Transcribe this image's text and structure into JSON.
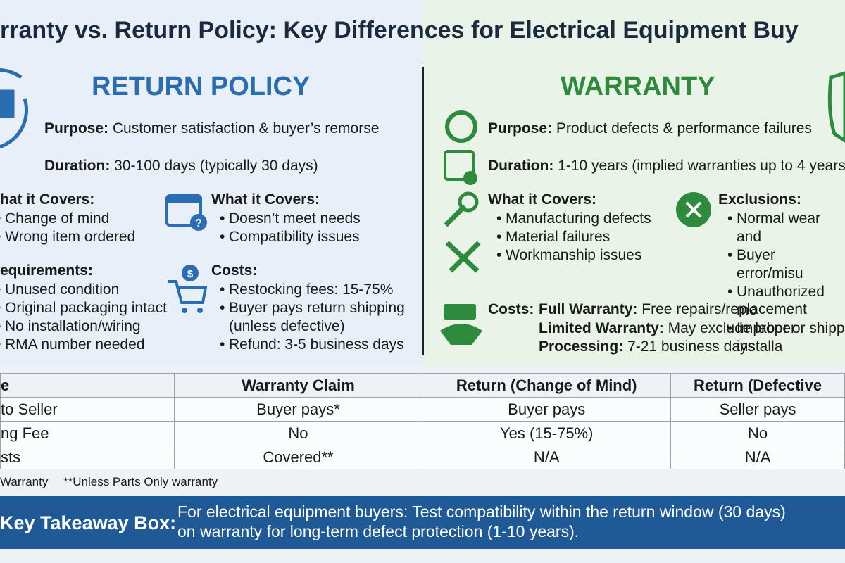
{
  "title": "rranty vs. Return Policy: Key Differences for Electrical Equipment Buy",
  "return_policy": {
    "heading": "RETURN POLICY",
    "purpose_label": "Purpose:",
    "purpose": "Customer satisfaction & buyer’s remorse",
    "duration_label": "Duration:",
    "duration": "30-100 days (typically 30 days)",
    "covers_a": {
      "label": "hat it Covers:",
      "items": [
        "Change of mind",
        "Wrong item ordered"
      ]
    },
    "requirements": {
      "label": "equirements:",
      "items": [
        "Unused condition",
        "Original packaging intact",
        "No installation/wiring",
        "RMA number needed"
      ]
    },
    "covers_b": {
      "label": "What it Covers:",
      "items": [
        "Doesn’t meet needs",
        "Compatibility issues"
      ]
    },
    "costs": {
      "label": "Costs:",
      "items": [
        "Restocking fees: 15-75%",
        "Buyer pays return shipping\n(unless defective)",
        "Refund: 3-5 business days"
      ]
    }
  },
  "warranty": {
    "heading": "WARRANTY",
    "purpose_label": "Purpose:",
    "purpose": "Product defects & performance failures",
    "duration_label": "Duration:",
    "duration": "1-10 years (implied warranties up to 4 years",
    "covers": {
      "label": "What it Covers:",
      "items": [
        "Manufacturing defects",
        "Material failures",
        "Workmanship issues"
      ]
    },
    "exclusions": {
      "label": "Exclusions:",
      "items": [
        "Normal wear and",
        "Buyer error/misu",
        "Unauthorized mo",
        "Improper installa"
      ]
    },
    "costs": {
      "label": "Costs:",
      "rows": [
        {
          "label": "Full Warranty:",
          "text": "Free repairs/replacement"
        },
        {
          "label": "Limited Warranty:",
          "text": "May exclude labor or shippi"
        },
        {
          "label": "Processing:",
          "text": "7-21 business days"
        }
      ]
    }
  },
  "table": {
    "header": [
      "e",
      "Warranty Claim",
      "Return (Change of Mind)",
      "Return (Defective"
    ],
    "rows": [
      [
        "to Seller",
        "Buyer pays*",
        "Buyer pays",
        "Seller pays"
      ],
      [
        "ng Fee",
        "No",
        "Yes (15-75%)",
        "No"
      ],
      [
        "sts",
        "Covered**",
        "N/A",
        "N/A"
      ]
    ]
  },
  "footnotes": [
    "Warranty",
    "**Unless Parts Only warranty"
  ],
  "takeaway": {
    "label": "Key Takeaway Box:",
    "lines": [
      "For electrical equipment buyers: Test compatibility within the return window (30 days)",
      "on warranty for long-term defect protection (1-10 years)."
    ]
  }
}
